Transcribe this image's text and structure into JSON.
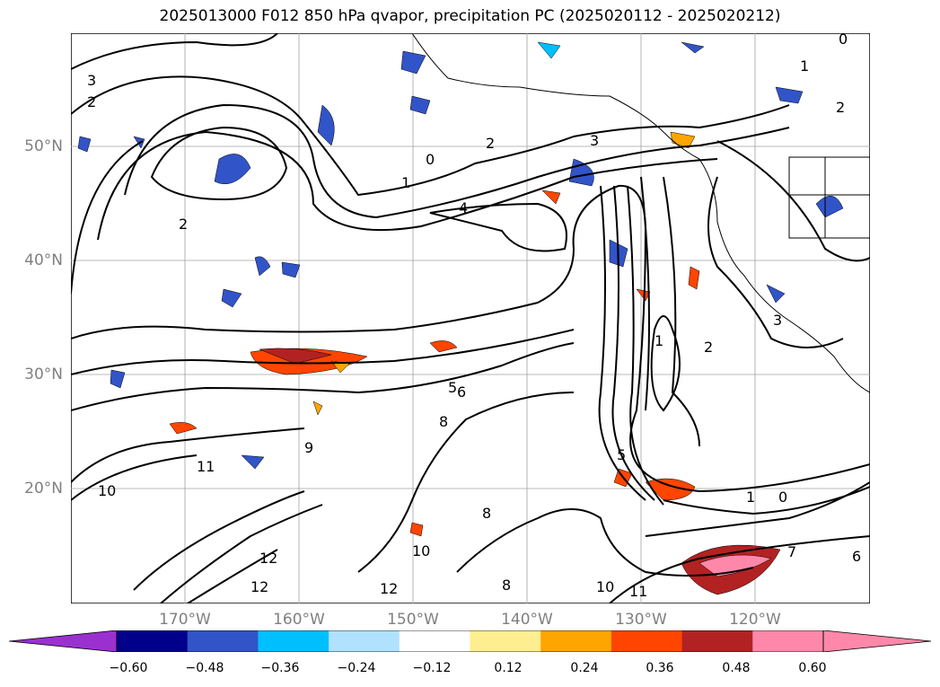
{
  "title": "2025013000 F012 850 hPa qvapor, precipitation PC (2025020112 - 2025020212)",
  "lat_labels": [
    "50°N",
    "40°N",
    "30°N",
    "20°N"
  ],
  "lon_labels": [
    "170°W",
    "160°W",
    "150°W",
    "140°W",
    "130°W",
    "120°W"
  ],
  "colorbar": {
    "ticks": [
      "−0.60",
      "−0.48",
      "−0.36",
      "−0.24",
      "−0.12",
      "0.12",
      "0.24",
      "0.36",
      "0.48",
      "0.60"
    ],
    "colors": [
      "#9b30d0",
      "#00008b",
      "#3154c8",
      "#00bfff",
      "#b0e2ff",
      "#ffffff",
      "#ffee90",
      "#ffa500",
      "#ff4500",
      "#b22222",
      "#ff88aa",
      "#ff88aa"
    ]
  },
  "contour_labels": [
    "0",
    "1",
    "2",
    "3",
    "4",
    "5",
    "6",
    "7",
    "8",
    "9",
    "10",
    "11",
    "12"
  ],
  "map_colors": {
    "contour": "#000000",
    "grid": "#a0a0a0",
    "coast": "#000000"
  }
}
